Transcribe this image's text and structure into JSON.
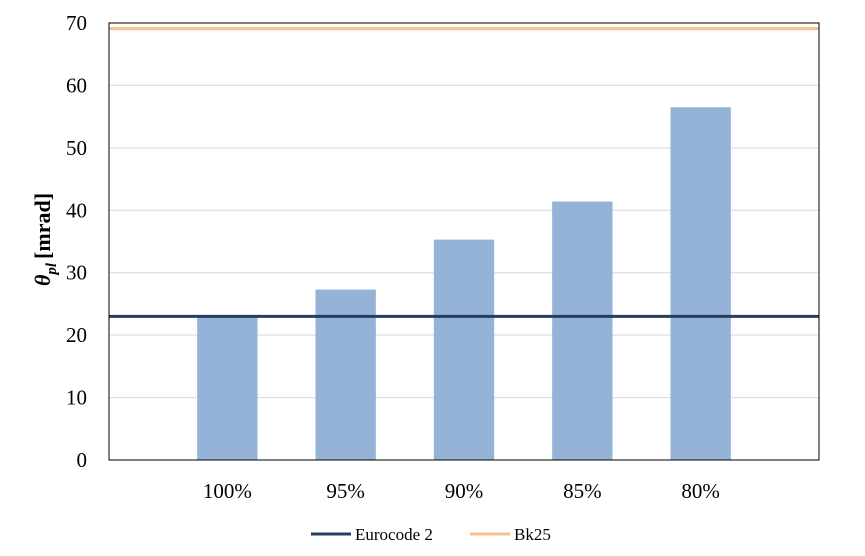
{
  "chart_data": {
    "type": "bar",
    "title": "",
    "xlabel": "",
    "ylabel": {
      "symbol": "θ",
      "subscript": "pl",
      "unit": "[mrad]"
    },
    "categories": [
      "100%",
      "95%",
      "90%",
      "85%",
      "80%"
    ],
    "series": [
      {
        "name": "",
        "type": "bar",
        "values": [
          23,
          27.3,
          35.3,
          41.4,
          56.5
        ],
        "color": "#95B3D7"
      }
    ],
    "reference_lines": [
      {
        "name": "Eurocode 2",
        "value": 23,
        "color": "#243F60"
      },
      {
        "name": "Bk25",
        "value": 69.1,
        "color": "#FAC090"
      }
    ],
    "ylim": [
      0,
      70
    ],
    "yticks": [
      0,
      10,
      20,
      30,
      40,
      50,
      60,
      70
    ],
    "grid": true,
    "legend": {
      "position": "bottom",
      "entries": [
        "Eurocode 2",
        "Bk25"
      ]
    }
  }
}
